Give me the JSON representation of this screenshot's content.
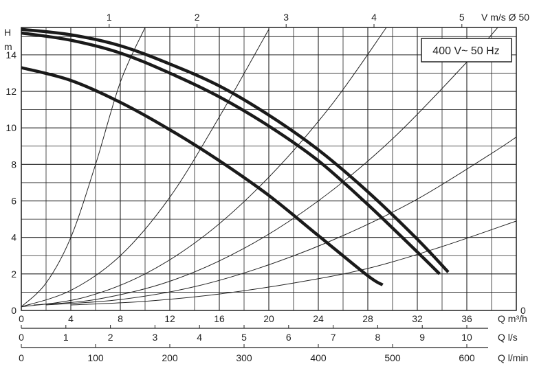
{
  "chart_data": {
    "type": "line",
    "label": "400 V~ 50 Hz",
    "y_axis": {
      "title_top": "H",
      "title_bottom": "m",
      "range": [
        0,
        15.5
      ],
      "ticks": [
        0,
        2,
        4,
        6,
        8,
        10,
        12,
        14
      ]
    },
    "x_axes": [
      {
        "unit": "Q m³/h",
        "range": [
          0,
          40
        ],
        "ticks": [
          0,
          4,
          8,
          12,
          16,
          20,
          24,
          28,
          32,
          36
        ]
      },
      {
        "unit": "Q l/s",
        "range": [
          0,
          11.111
        ],
        "ticks": [
          0,
          1,
          2,
          3,
          4,
          5,
          6,
          7,
          8,
          9,
          10
        ]
      },
      {
        "unit": "Q l/min",
        "range": [
          0,
          666.67
        ],
        "ticks": [
          0,
          100,
          200,
          300,
          400,
          500,
          600
        ]
      }
    ],
    "top_axis": {
      "title": "V m/s Ø 50",
      "ticks": [
        {
          "label": "1",
          "q": 7.1
        },
        {
          "label": "2",
          "q": 14.2
        },
        {
          "label": "3",
          "q": 21.4
        },
        {
          "label": "4",
          "q": 28.5
        },
        {
          "label": "5",
          "q": 35.6
        }
      ],
      "right_zero_label": "0"
    },
    "series": [
      {
        "points": [
          [
            0,
            15.4
          ],
          [
            4,
            15.1
          ],
          [
            8,
            14.5
          ],
          [
            12,
            13.5
          ],
          [
            16,
            12.3
          ],
          [
            20,
            10.7
          ],
          [
            24,
            8.8
          ],
          [
            28,
            6.5
          ],
          [
            32,
            3.9
          ],
          [
            34.5,
            2.1
          ]
        ]
      },
      {
        "points": [
          [
            0,
            15.2
          ],
          [
            4,
            14.8
          ],
          [
            8,
            14.1
          ],
          [
            12,
            13.0
          ],
          [
            16,
            11.7
          ],
          [
            20,
            10.1
          ],
          [
            24,
            8.2
          ],
          [
            28,
            5.8
          ],
          [
            32,
            3.2
          ],
          [
            33.8,
            2.0
          ]
        ]
      },
      {
        "points": [
          [
            0,
            13.3
          ],
          [
            4,
            12.6
          ],
          [
            8,
            11.4
          ],
          [
            12,
            9.9
          ],
          [
            16,
            8.2
          ],
          [
            20,
            6.3
          ],
          [
            24,
            4.1
          ],
          [
            28,
            1.9
          ],
          [
            29.2,
            1.4
          ]
        ]
      }
    ],
    "system_curves": [
      {
        "x": [
          0,
          2,
          4,
          6,
          8,
          10
        ],
        "y": [
          0.2,
          1.5,
          4.0,
          8.0,
          12.5,
          15.5
        ]
      },
      {
        "x": [
          0,
          4,
          8,
          12,
          16,
          20
        ],
        "y": [
          0.2,
          1.1,
          3.0,
          6.2,
          10.6,
          15.4
        ]
      },
      {
        "x": [
          0,
          5,
          10,
          15,
          20,
          25,
          29.5
        ],
        "y": [
          0.2,
          0.7,
          2.0,
          4.2,
          7.3,
          11.2,
          15.5
        ]
      },
      {
        "x": [
          1,
          6,
          12,
          18,
          24,
          30,
          36,
          38.5
        ],
        "y": [
          0.3,
          0.6,
          1.6,
          3.4,
          6.0,
          9.4,
          13.6,
          15.5
        ]
      },
      {
        "x": [
          2,
          8,
          14,
          20,
          26,
          32,
          38,
          40
        ],
        "y": [
          0.3,
          0.6,
          1.3,
          2.5,
          4.1,
          6.1,
          8.6,
          9.5
        ]
      },
      {
        "x": [
          4,
          10,
          16,
          22,
          28,
          34,
          40
        ],
        "y": [
          0.3,
          0.5,
          0.9,
          1.5,
          2.3,
          3.5,
          4.9
        ]
      }
    ],
    "grid": true
  }
}
